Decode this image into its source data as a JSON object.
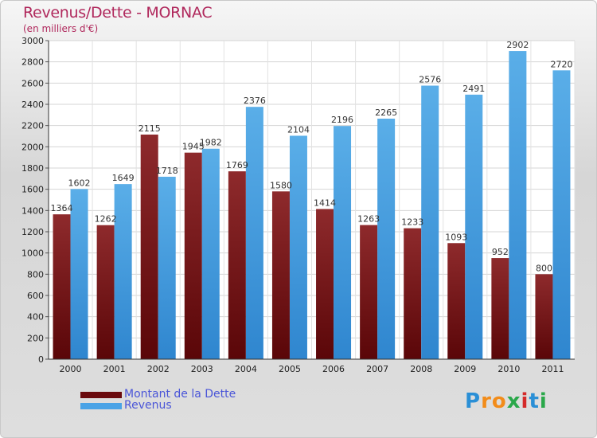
{
  "header": {
    "title": "Revenus/Dette - MORNAC",
    "subtitle": "(en milliers d'€)"
  },
  "legend": {
    "debt_label": "Montant de la Dette",
    "revenue_label": "Revenus"
  },
  "logo": {
    "text": "Proxiti",
    "letters": [
      "P",
      "r",
      "o",
      "x",
      "i",
      "t",
      "i"
    ],
    "letter_colors": [
      "#2a8fd6",
      "#f28c1a",
      "#f28c1a",
      "#2aa84a",
      "#d42a2a",
      "#2a8fd6",
      "#2aa84a"
    ]
  },
  "colors": {
    "debt": "#7a1518",
    "revenue": "#4aa3e6",
    "title": "#b0285c",
    "legend_text": "#4a55d8"
  },
  "chart_data": {
    "type": "bar",
    "title": "Revenus/Dette - MORNAC",
    "subtitle": "(en milliers d'€)",
    "xlabel": "",
    "ylabel": "",
    "ylim": [
      0,
      3000
    ],
    "ytick_step": 200,
    "grid": true,
    "legend_position": "bottom-left",
    "categories": [
      "2000",
      "2001",
      "2002",
      "2003",
      "2004",
      "2005",
      "2006",
      "2007",
      "2008",
      "2009",
      "2010",
      "2011"
    ],
    "series": [
      {
        "name": "Montant de la Dette",
        "values": [
          1364,
          1262,
          2115,
          1945,
          1769,
          1580,
          1414,
          1263,
          1233,
          1093,
          952,
          800
        ]
      },
      {
        "name": "Revenus",
        "values": [
          1602,
          1649,
          1718,
          1982,
          2376,
          2104,
          2196,
          2265,
          2576,
          2491,
          2902,
          2720
        ]
      }
    ]
  }
}
